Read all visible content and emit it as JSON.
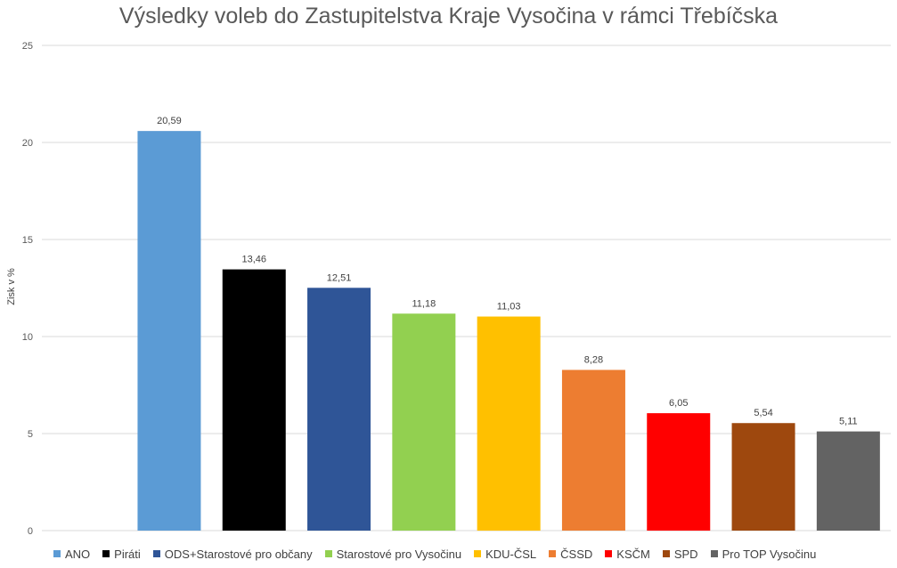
{
  "chart_data": {
    "type": "bar",
    "title": "Výsledky voleb do Zastupitelstva Kraje Vysočina v rámci Třebíčska",
    "xlabel": "",
    "ylabel": "Zisk v %",
    "ylim": [
      0,
      25
    ],
    "yticks": [
      "0",
      "5",
      "10",
      "15",
      "20",
      "25"
    ],
    "grid": true,
    "legend_position": "bottom",
    "categories": [
      "ANO",
      "Piráti",
      "ODS+Starostové pro občany",
      "Starostové pro Vysočinu",
      "KDU-ČSL",
      "ČSSD",
      "KSČM",
      "SPD",
      "Pro TOP Vysočinu"
    ],
    "values": [
      20.59,
      13.46,
      12.51,
      11.18,
      11.03,
      8.28,
      6.05,
      5.54,
      5.11
    ],
    "value_labels": [
      "20,59",
      "13,46",
      "12,51",
      "11,18",
      "11,03",
      "8,28",
      "6,05",
      "5,54",
      "5,11"
    ],
    "colors": [
      "#5B9BD5",
      "#000000",
      "#2F5597",
      "#92D050",
      "#FFC000",
      "#ED7D31",
      "#FF0000",
      "#9E480E",
      "#636363"
    ]
  }
}
